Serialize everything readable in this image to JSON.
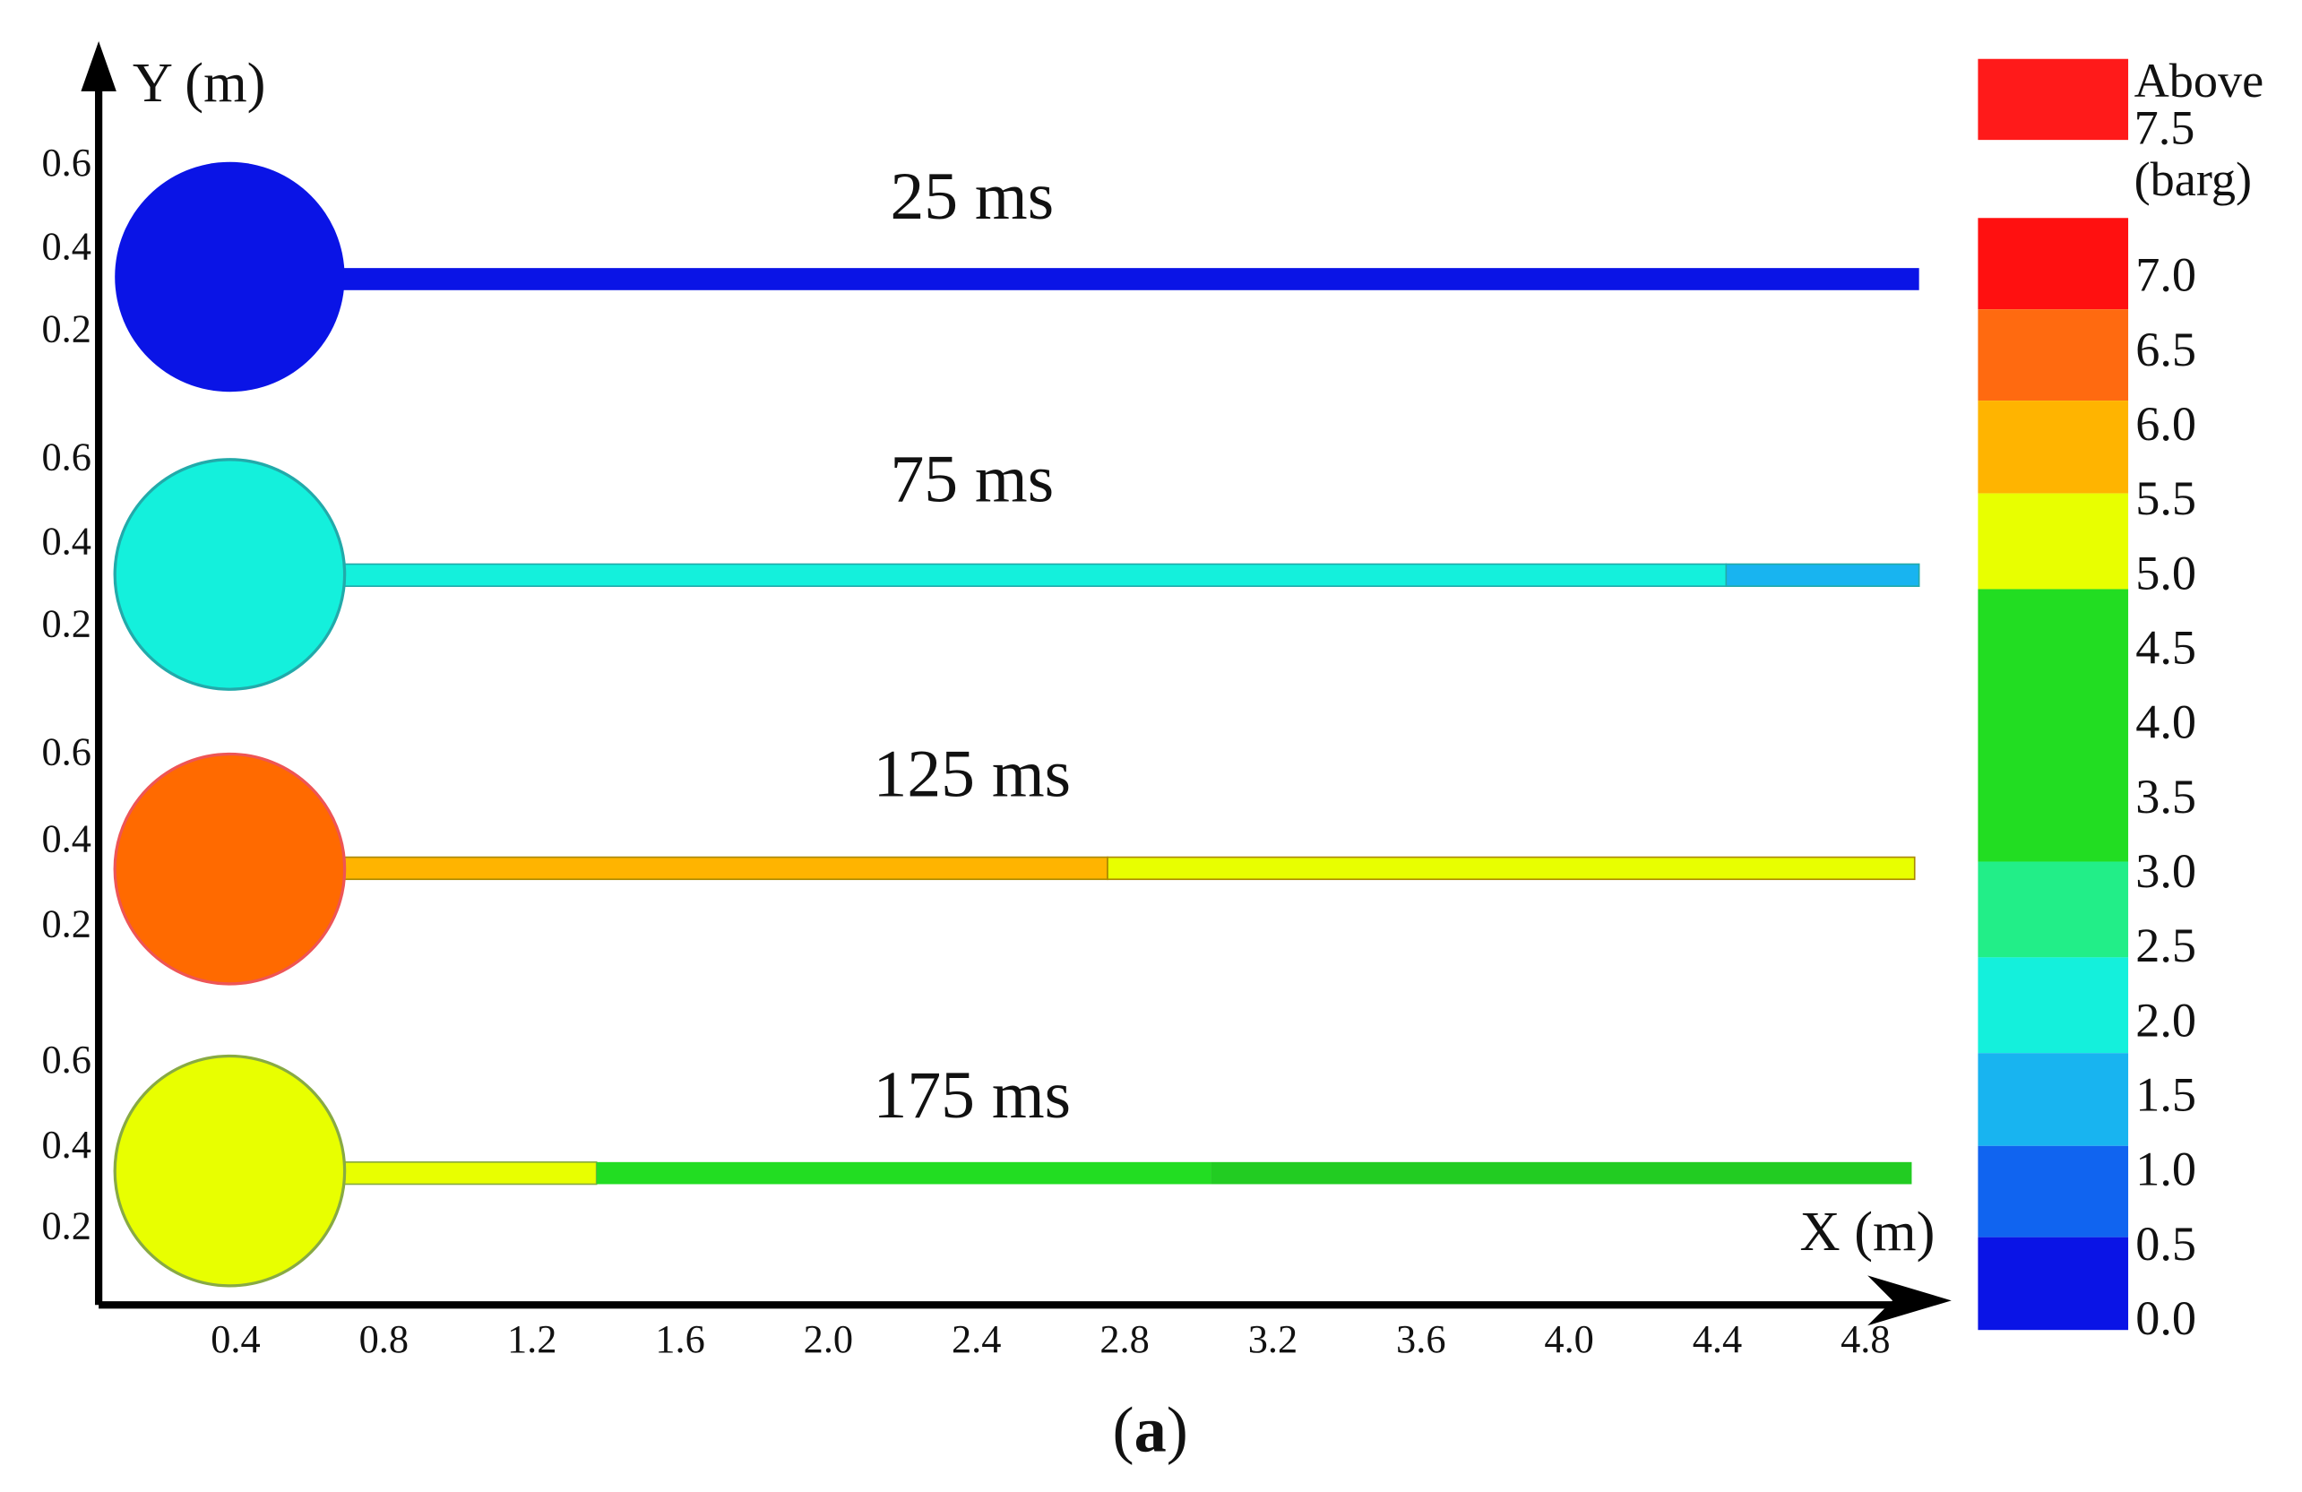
{
  "axes": {
    "y_label": "Y (m)",
    "x_label": "X (m)",
    "x_ticks": [
      "0.4",
      "0.8",
      "1.2",
      "1.6",
      "2.0",
      "2.4",
      "2.8",
      "3.2",
      "3.6",
      "4.0",
      "4.4",
      "4.8"
    ]
  },
  "frames": [
    {
      "label": "25 ms",
      "y_ticks": [
        "0.6",
        "0.4",
        "0.2"
      ]
    },
    {
      "label": "75 ms",
      "y_ticks": [
        "0.6",
        "0.4",
        "0.2"
      ]
    },
    {
      "label": "125 ms",
      "y_ticks": [
        "0.6",
        "0.4",
        "0.2"
      ]
    },
    {
      "label": "175 ms",
      "y_ticks": [
        "0.6",
        "0.4",
        "0.2"
      ]
    }
  ],
  "legend": {
    "above": [
      "Above",
      "7.5",
      "(barg)"
    ],
    "levels": [
      "7.0",
      "6.5",
      "6.0",
      "5.5",
      "5.0",
      "4.5",
      "4.0",
      "3.5",
      "3.0",
      "2.5",
      "2.0",
      "1.5",
      "1.0",
      "0.5",
      "0.0"
    ]
  },
  "caption": [
    "(",
    "a",
    ")"
  ]
}
